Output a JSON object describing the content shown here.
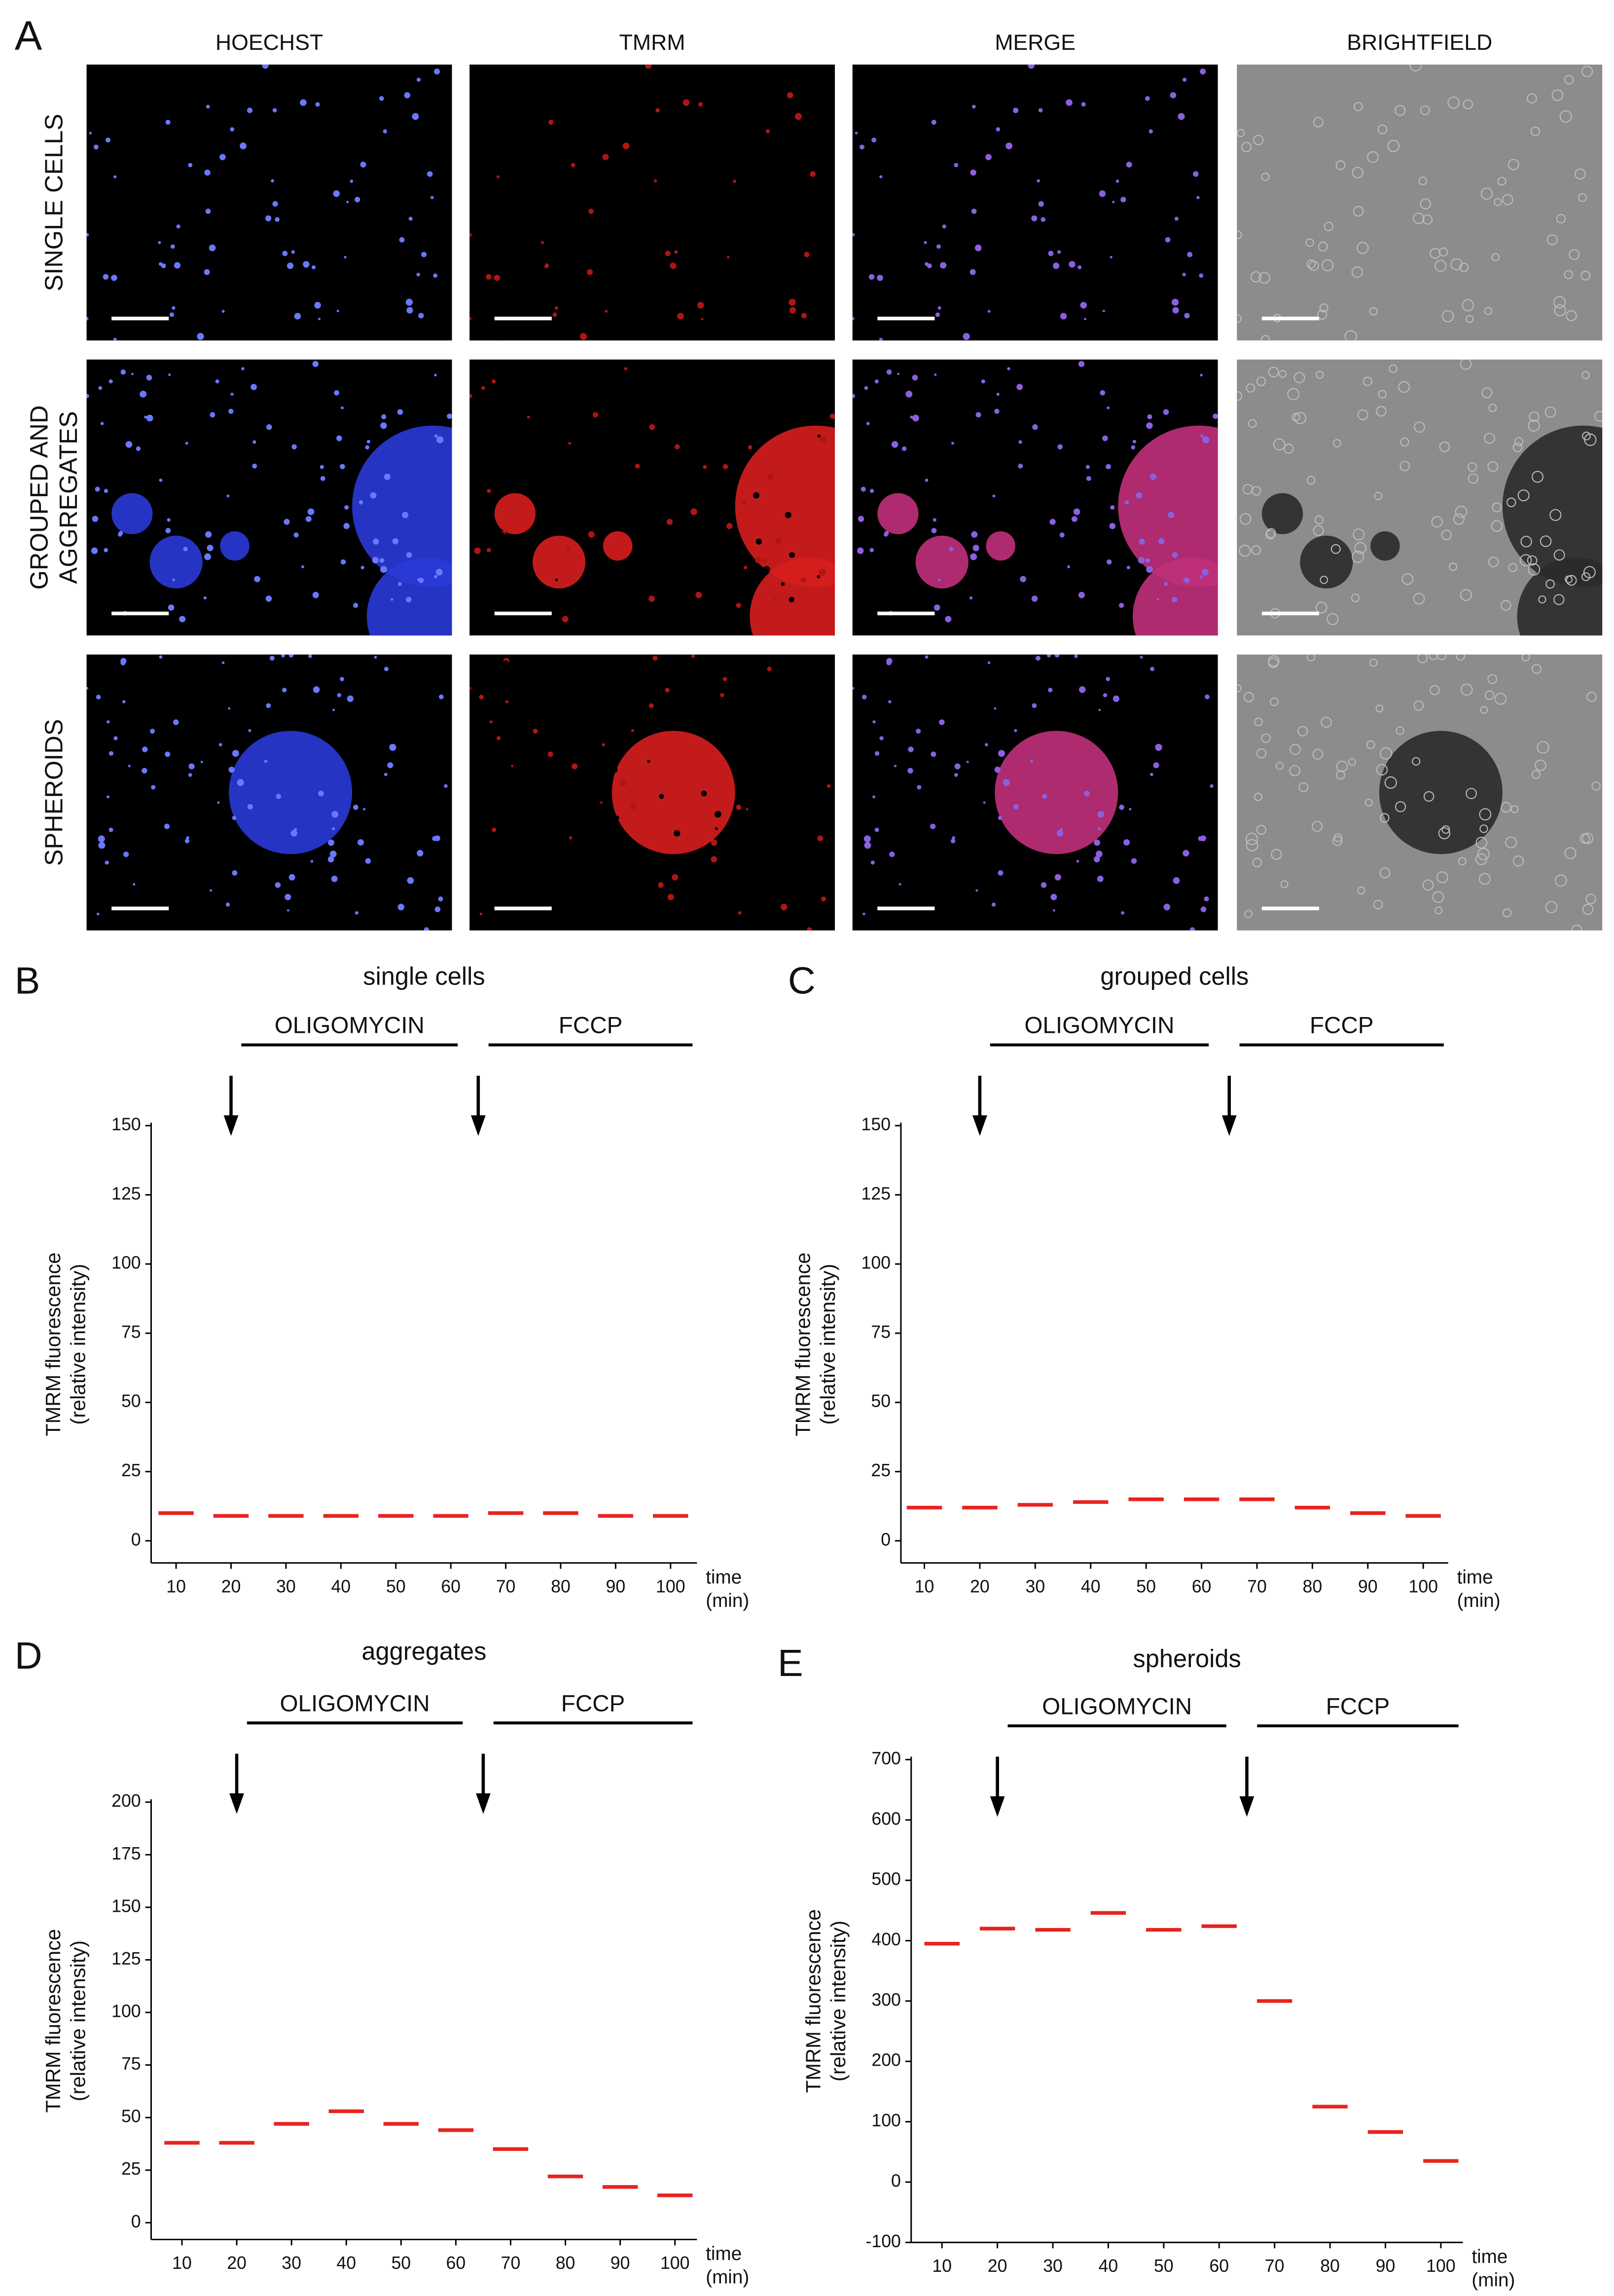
{
  "panel_a": {
    "label": "A",
    "columns": [
      "HOECHST",
      "TMRM",
      "MERGE",
      "BRIGHTFIELD"
    ],
    "rows": [
      [
        "SINGLE CELLS"
      ],
      [
        "GROUPED AND",
        "AGGREGATES"
      ],
      [
        "SPHEROIDS"
      ]
    ]
  },
  "chart_data": [
    {
      "type": "dot",
      "panel_label": "B",
      "title": "single cells",
      "annotations": [
        "OLIGOMYCIN",
        "FCCP"
      ],
      "categories": [
        "10",
        "20",
        "30",
        "40",
        "50",
        "60",
        "70",
        "80",
        "90",
        "100"
      ],
      "values": [
        10,
        9,
        9,
        9,
        9,
        9,
        10,
        10,
        9,
        9
      ],
      "color": "#e8231f",
      "ylim": [
        -8,
        150
      ],
      "yticks": [
        0,
        25,
        50,
        75,
        100,
        125,
        150
      ],
      "x_label": [
        "time",
        "(min)"
      ],
      "y_label": [
        "TMRM fluorescence",
        "(relative intensity)"
      ]
    },
    {
      "type": "dot",
      "panel_label": "C",
      "title": "grouped cells",
      "annotations": [
        "OLIGOMYCIN",
        "FCCP"
      ],
      "categories": [
        "10",
        "20",
        "30",
        "40",
        "50",
        "60",
        "70",
        "80",
        "90",
        "100"
      ],
      "values": [
        12,
        12,
        13,
        14,
        15,
        15,
        15,
        12,
        10,
        9
      ],
      "color": "#e8231f",
      "ylim": [
        -8,
        150
      ],
      "yticks": [
        0,
        25,
        50,
        75,
        100,
        125,
        150
      ],
      "x_label": [
        "time",
        "(min)"
      ],
      "y_label": [
        "TMRM fluorescence",
        "(relative intensity)"
      ]
    },
    {
      "type": "dot",
      "panel_label": "D",
      "title": "aggregates",
      "annotations": [
        "OLIGOMYCIN",
        "FCCP"
      ],
      "categories": [
        "10",
        "20",
        "30",
        "40",
        "50",
        "60",
        "70",
        "80",
        "90",
        "100"
      ],
      "values": [
        38,
        38,
        47,
        53,
        47,
        44,
        35,
        22,
        17,
        13
      ],
      "color": "#e8231f",
      "ylim": [
        -8,
        200
      ],
      "yticks": [
        0,
        25,
        50,
        75,
        100,
        125,
        150,
        175,
        200
      ],
      "x_label": [
        "time",
        "(min)"
      ],
      "y_label": [
        "TMRM fluorescence",
        "(relative intensity)"
      ]
    },
    {
      "type": "dot",
      "panel_label": "E",
      "title": "spheroids",
      "annotations": [
        "OLIGOMYCIN",
        "FCCP"
      ],
      "categories": [
        "10",
        "20",
        "30",
        "40",
        "50",
        "60",
        "70",
        "80",
        "90",
        "100"
      ],
      "values": [
        395,
        420,
        418,
        446,
        418,
        424,
        300,
        125,
        83,
        35
      ],
      "color": "#e8231f",
      "ylim": [
        -100,
        700
      ],
      "yticks": [
        -100,
        0,
        100,
        200,
        300,
        400,
        500,
        600,
        700
      ],
      "x_label": [
        "time",
        "(min)"
      ],
      "y_label": [
        "TMRM fluorescence",
        "(relative intensity)"
      ]
    }
  ]
}
